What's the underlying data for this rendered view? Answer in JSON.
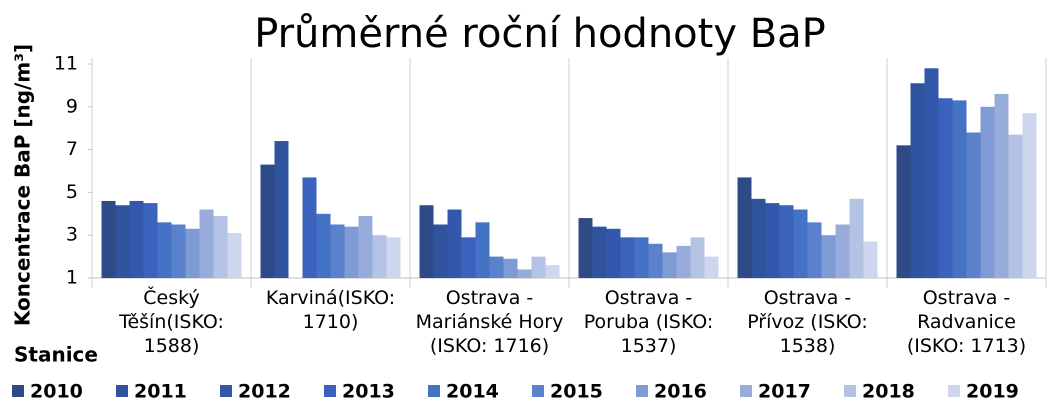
{
  "chart_data": {
    "type": "bar",
    "title": "Průměrné roční hodnoty BaP",
    "y_label": "Koncentrace BaP [ng/m³]",
    "x_label": "Stanice",
    "categories": [
      "Český Těšín(ISKO: 1588)",
      "Karviná(ISKO: 1710)",
      "Ostrava - Mariánské Hory (ISKO: 1716)",
      "Ostrava - Poruba (ISKO: 1537)",
      "Ostrava - Přívoz (ISKO: 1538)",
      "Ostrava - Radvanice (ISKO: 1713)"
    ],
    "series": [
      {
        "name": "2010",
        "color": "#2f4b87",
        "values": [
          4.6,
          6.3,
          4.4,
          3.8,
          5.7,
          7.2
        ]
      },
      {
        "name": "2011",
        "color": "#30539e",
        "values": [
          4.4,
          7.4,
          3.5,
          3.4,
          4.7,
          10.1
        ]
      },
      {
        "name": "2012",
        "color": "#3358ab",
        "values": [
          4.6,
          null,
          4.2,
          3.3,
          4.5,
          10.8
        ]
      },
      {
        "name": "2013",
        "color": "#3b63bd",
        "values": [
          4.5,
          5.7,
          2.9,
          2.9,
          4.4,
          9.4
        ]
      },
      {
        "name": "2014",
        "color": "#4472c4",
        "values": [
          3.6,
          4.0,
          3.6,
          2.9,
          4.2,
          9.3
        ]
      },
      {
        "name": "2015",
        "color": "#5a82cc",
        "values": [
          3.5,
          3.5,
          2.0,
          2.6,
          3.6,
          7.8
        ]
      },
      {
        "name": "2016",
        "color": "#7f9bd5",
        "values": [
          3.3,
          3.4,
          1.9,
          2.2,
          3.0,
          9.0
        ]
      },
      {
        "name": "2017",
        "color": "#98acdb",
        "values": [
          4.2,
          3.9,
          1.4,
          2.5,
          3.5,
          9.6
        ]
      },
      {
        "name": "2018",
        "color": "#b4c2e4",
        "values": [
          3.9,
          3.0,
          2.0,
          2.9,
          4.7,
          7.7
        ]
      },
      {
        "name": "2019",
        "color": "#cdd6ec",
        "values": [
          3.1,
          2.9,
          1.6,
          2.0,
          2.7,
          8.7
        ]
      }
    ],
    "ylim": [
      1,
      11
    ],
    "yticks": [
      1,
      3,
      5,
      7,
      9,
      11
    ]
  }
}
